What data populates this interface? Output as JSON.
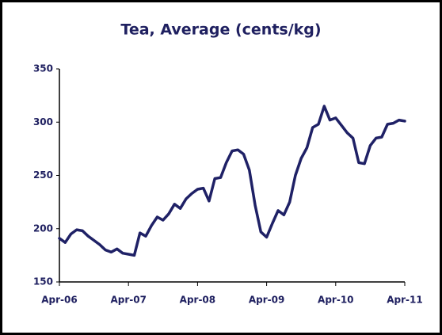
{
  "chart_data": {
    "type": "line",
    "title": "Tea, Average (cents/kg)",
    "categories": [
      "Apr-06",
      null,
      null,
      null,
      null,
      null,
      null,
      null,
      null,
      null,
      null,
      null,
      "Apr-07",
      null,
      null,
      null,
      null,
      null,
      null,
      null,
      null,
      null,
      null,
      null,
      "Apr-08",
      null,
      null,
      null,
      null,
      null,
      null,
      null,
      null,
      null,
      null,
      null,
      "Apr-09",
      null,
      null,
      null,
      null,
      null,
      null,
      null,
      null,
      null,
      null,
      null,
      "Apr-10",
      null,
      null,
      null,
      null,
      null,
      null,
      null,
      null,
      null,
      null,
      null,
      "Apr-11"
    ],
    "series": [
      {
        "color": "#1f2166",
        "values": [
          191,
          187,
          195,
          199,
          198,
          193,
          189,
          185,
          180,
          178,
          181,
          177,
          176,
          175,
          196,
          193,
          203,
          211,
          208,
          214,
          223,
          219,
          228,
          233,
          237,
          238,
          226,
          247,
          248,
          262,
          273,
          274,
          270,
          255,
          222,
          197,
          192,
          205,
          217,
          213,
          225,
          250,
          266,
          276,
          295,
          298,
          315,
          302,
          304,
          297,
          290,
          285,
          262,
          261,
          278,
          285,
          286,
          298,
          299,
          302,
          301
        ]
      }
    ],
    "ylim": [
      150,
      350
    ],
    "yticks": [
      150,
      200,
      250,
      300,
      350
    ]
  }
}
